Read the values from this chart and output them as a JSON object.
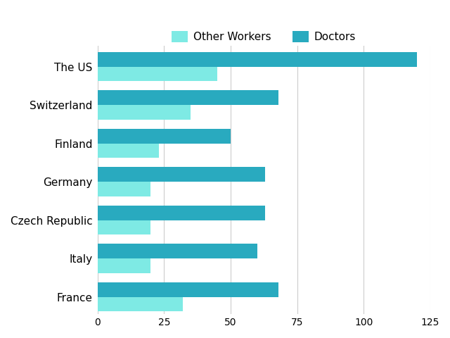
{
  "countries": [
    "France",
    "Italy",
    "Czech Republic",
    "Germany",
    "Finland",
    "Switzerland",
    "The US"
  ],
  "other_workers": [
    32,
    20,
    20,
    20,
    23,
    35,
    45
  ],
  "doctors": [
    68,
    60,
    63,
    63,
    50,
    68,
    120
  ],
  "color_other": "#7EEAE4",
  "color_doctors": "#29AABF",
  "legend_labels": [
    "Other Workers",
    "Doctors"
  ],
  "xlim": [
    0,
    125
  ],
  "xticks": [
    0,
    25,
    50,
    75,
    100,
    125
  ],
  "background_color": "#ffffff",
  "bar_height": 0.38,
  "grid_color": "#cccccc"
}
